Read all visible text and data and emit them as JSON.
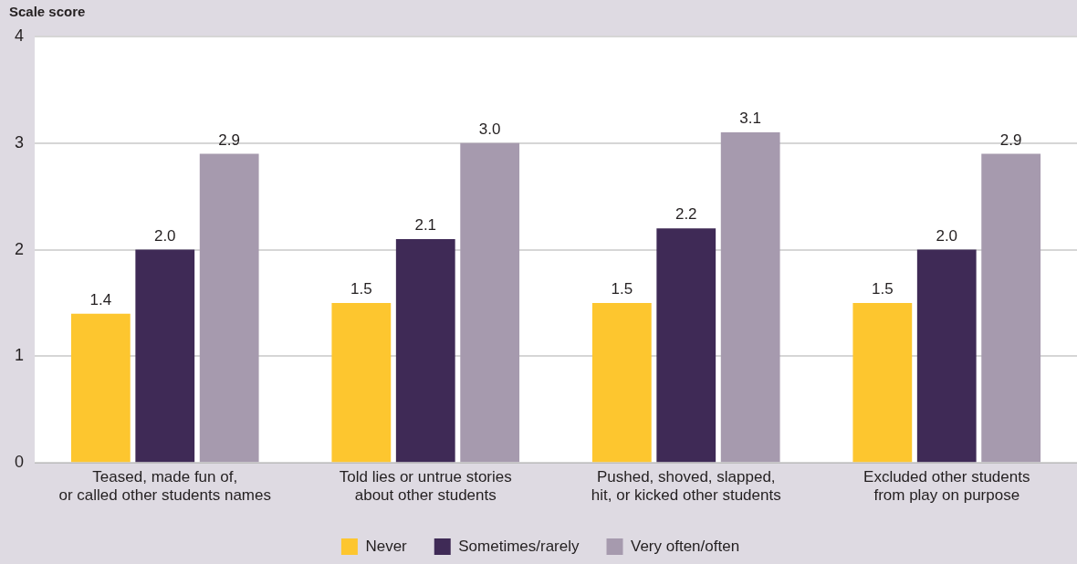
{
  "chart_data": {
    "type": "bar",
    "ylabel": "Scale score",
    "categories": [
      "Teased, made fun of,\nor called other students names",
      "Told lies or untrue stories\nabout other students",
      "Pushed, shoved, slapped,\nhit, or kicked other students",
      "Excluded other students\nfrom play on purpose"
    ],
    "series": [
      {
        "name": "Never",
        "color": "#fdc62f",
        "values": [
          1.4,
          1.5,
          1.5,
          1.5
        ],
        "value_labels": [
          "1.4",
          "1.5",
          "1.5",
          "1.5"
        ]
      },
      {
        "name": "Sometimes/rarely",
        "color": "#3f2a56",
        "values": [
          2.0,
          2.1,
          2.2,
          2.0
        ],
        "value_labels": [
          "2.0",
          "2.1",
          "2.2",
          "2.0"
        ]
      },
      {
        "name": "Very often/often",
        "color": "#a69aae",
        "values": [
          2.9,
          3.0,
          3.1,
          2.9
        ],
        "value_labels": [
          "2.9",
          "3.0",
          "3.1",
          "2.9"
        ]
      }
    ],
    "ylim": [
      0,
      4
    ],
    "yticks": [
      0,
      1,
      2,
      3,
      4
    ],
    "grid": "y",
    "legend": "bottom"
  }
}
